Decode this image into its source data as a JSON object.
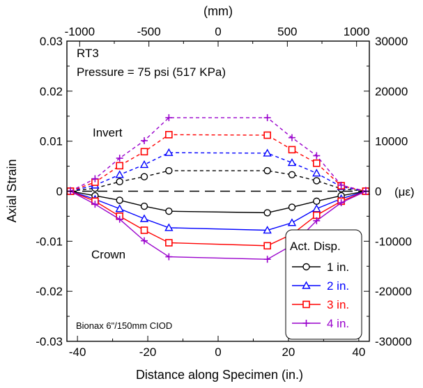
{
  "chart_data": {
    "type": "line",
    "annotations": {
      "specimen": "RT3",
      "pressure": "Pressure = 75 psi (517 KPa)",
      "invert": "Invert",
      "crown": "Crown",
      "pipe": "Bionax 6\"/150mm CIOD"
    },
    "xlabel": "Distance along Specimen (in.)",
    "ylabel": "Axial Strain",
    "top_axis_label": "(mm)",
    "right_axis_label": "(με)",
    "xlim": [
      -43,
      43
    ],
    "ylim": [
      -0.03,
      0.03
    ],
    "x_ticks": [
      "-40",
      "-20",
      "0",
      "20",
      "40"
    ],
    "x_tick_values": [
      -40,
      -20,
      0,
      20,
      40
    ],
    "y_ticks": [
      "0.03",
      "0.02",
      "0.01",
      "0",
      "-0.01",
      "-0.02",
      "-0.03"
    ],
    "y_tick_values": [
      0.03,
      0.02,
      0.01,
      0,
      -0.01,
      -0.02,
      -0.03
    ],
    "top_ticks": [
      "-1000",
      "-500",
      "0",
      "500",
      "1000"
    ],
    "top_tick_values_mm": [
      -1000,
      -500,
      0,
      500,
      1000
    ],
    "right_ticks": [
      "30000",
      "20000",
      "10000",
      "0",
      "-10000",
      "-20000",
      "-30000"
    ],
    "right_tick_values": [
      30000,
      20000,
      10000,
      0,
      -10000,
      -20000,
      -30000
    ],
    "legend_title": "Act. Disp.",
    "legend_placement": "bottom-right",
    "zero_line": "dashed",
    "grid": false,
    "series": [
      {
        "name": "1 in.",
        "color": "#000000",
        "marker": "circle",
        "invert": {
          "x": [
            -42,
            -35,
            -28,
            -21,
            -14,
            14,
            21,
            28,
            35,
            42
          ],
          "y": [
            0.0,
            0.0006,
            0.0019,
            0.0029,
            0.0041,
            0.0041,
            0.0033,
            0.0021,
            0.0005,
            0.0
          ]
        },
        "crown": {
          "x": [
            -42,
            -35,
            -28,
            -21,
            -14,
            14,
            21,
            28,
            35,
            42
          ],
          "y": [
            0.0,
            -0.0009,
            -0.0018,
            -0.003,
            -0.004,
            -0.0043,
            -0.0032,
            -0.002,
            -0.0009,
            0.0
          ]
        }
      },
      {
        "name": "2 in.",
        "color": "#0000ff",
        "marker": "triangle",
        "invert": {
          "x": [
            -42,
            -35,
            -28,
            -21,
            -14,
            14,
            21,
            28,
            35,
            42
          ],
          "y": [
            0.0,
            0.0012,
            0.0033,
            0.0053,
            0.0077,
            0.0076,
            0.0057,
            0.0036,
            0.0009,
            0.0
          ]
        },
        "crown": {
          "x": [
            -42,
            -35,
            -28,
            -21,
            -14,
            14,
            21,
            28,
            35,
            42
          ],
          "y": [
            0.0,
            -0.0016,
            -0.0035,
            -0.0055,
            -0.0073,
            -0.0078,
            -0.0063,
            -0.0035,
            -0.0015,
            0.0
          ]
        }
      },
      {
        "name": "3 in.",
        "color": "#ff0000",
        "marker": "square",
        "invert": {
          "x": [
            -42,
            -35,
            -28,
            -21,
            -14,
            14,
            21,
            28,
            35,
            42
          ],
          "y": [
            0.0,
            0.0018,
            0.0051,
            0.0079,
            0.0113,
            0.0112,
            0.0083,
            0.0056,
            0.0011,
            0.0
          ]
        },
        "crown": {
          "x": [
            -42,
            -35,
            -28,
            -21,
            -14,
            14,
            21,
            28,
            35,
            42
          ],
          "y": [
            0.0,
            -0.002,
            -0.005,
            -0.0078,
            -0.0103,
            -0.0109,
            -0.0086,
            -0.0048,
            -0.002,
            0.0
          ]
        }
      },
      {
        "name": "4 in.",
        "color": "#9900cc",
        "marker": "plus",
        "invert": {
          "x": [
            -42,
            -35,
            -28,
            -21,
            -14,
            14,
            21,
            28,
            35,
            42
          ],
          "y": [
            0.0,
            0.0025,
            0.0066,
            0.0101,
            0.0147,
            0.0147,
            0.0107,
            0.0071,
            0.0012,
            0.0
          ]
        },
        "crown": {
          "x": [
            -42,
            -35,
            -28,
            -21,
            -14,
            14,
            21,
            28,
            35,
            42
          ],
          "y": [
            0.0,
            -0.0026,
            -0.0056,
            -0.0099,
            -0.0131,
            -0.0136,
            -0.0108,
            -0.0059,
            -0.0023,
            0.0
          ]
        }
      }
    ]
  }
}
